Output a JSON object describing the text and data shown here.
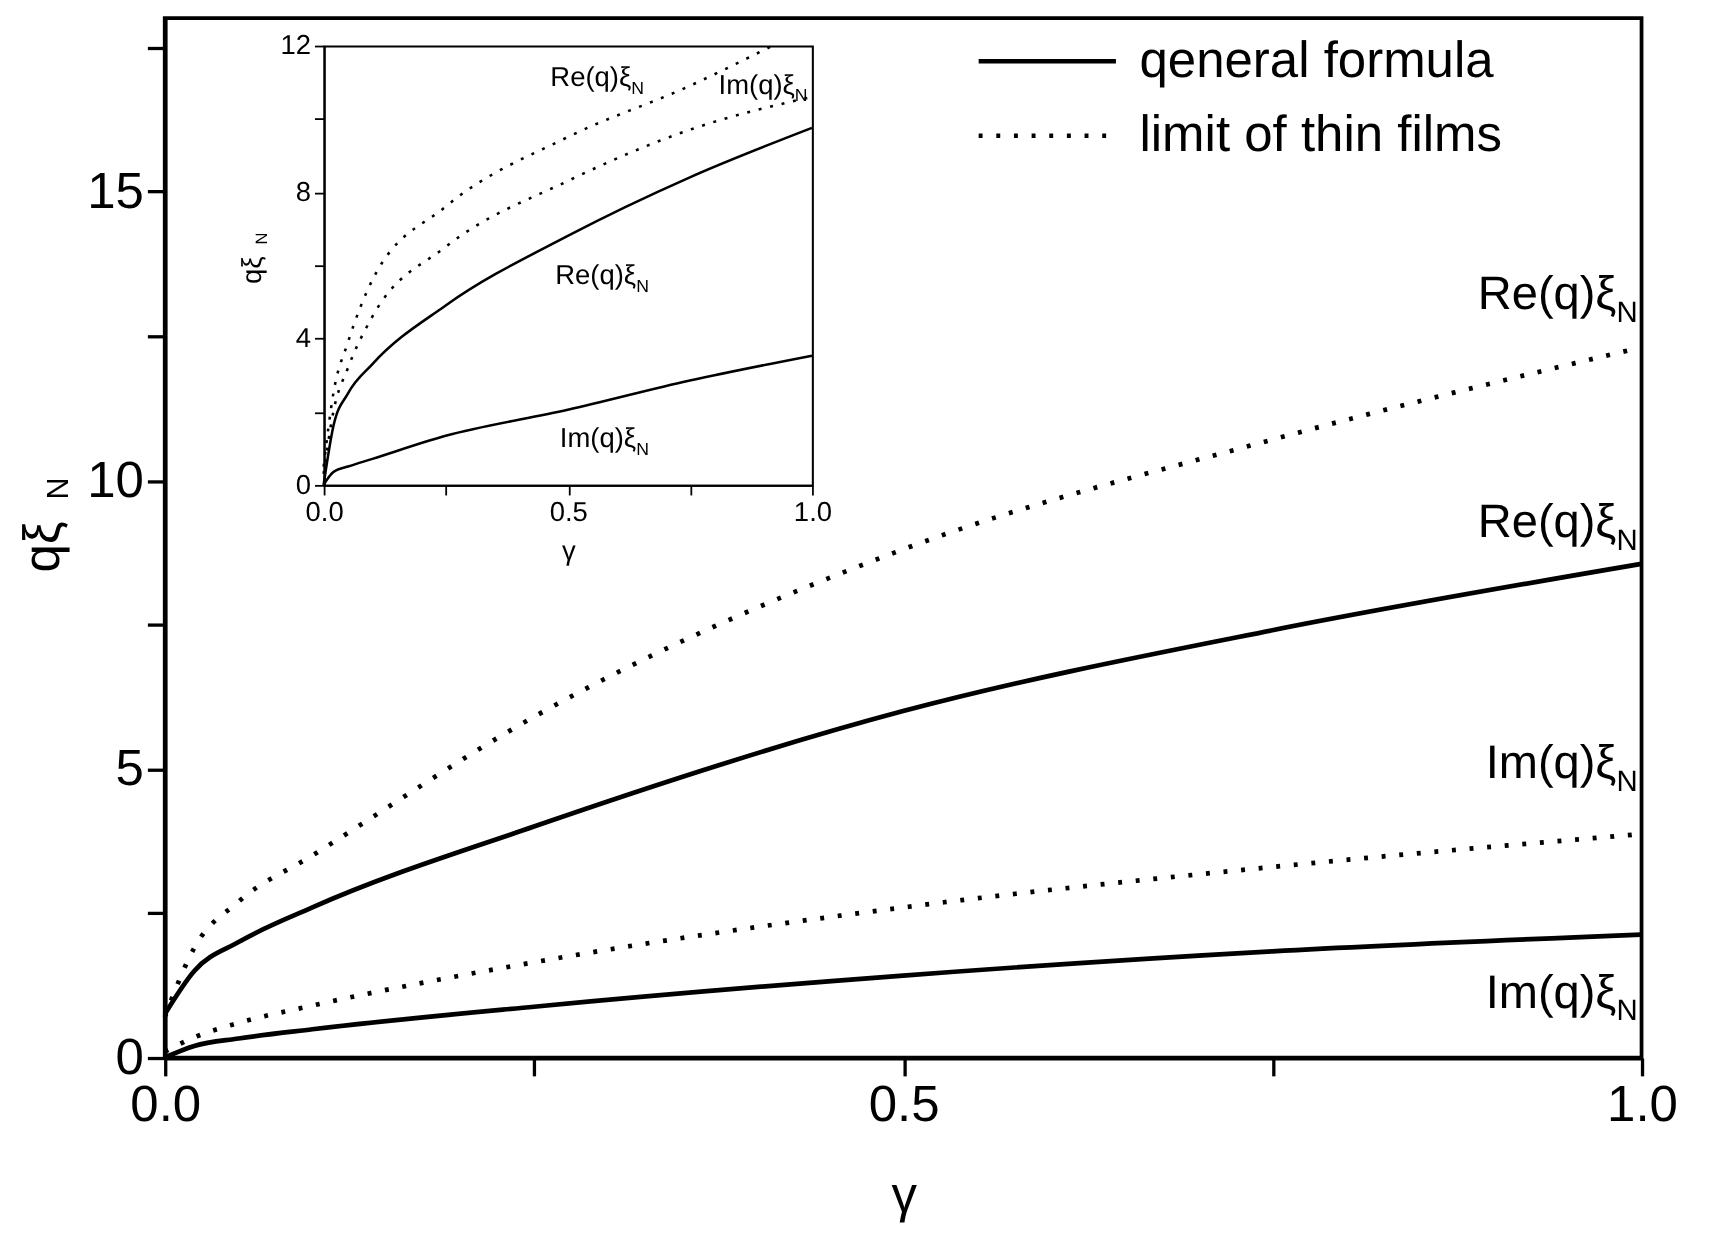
{
  "chart_data": [
    {
      "type": "line",
      "xlabel": "γ",
      "ylabel": "qξ$_{N}$",
      "xlim": [
        0,
        1
      ],
      "ylim": [
        0,
        18
      ],
      "xticks": [
        {
          "value": 0,
          "label": "0.0"
        },
        {
          "value": 0.25,
          "label": null
        },
        0.5,
        {
          "value": 0.75,
          "label": null
        },
        {
          "value": 1,
          "label": "1.0"
        }
      ],
      "yticks": [
        0,
        {
          "value": 2.5,
          "label": null
        },
        5,
        {
          "value": 7.5,
          "label": null
        },
        10,
        {
          "value": 12.5,
          "label": null
        },
        15,
        {
          "value": 17.5,
          "label": null
        }
      ],
      "x": [
        0,
        0.02,
        0.05,
        0.1,
        0.25,
        0.5,
        0.75,
        1
      ],
      "legend": "top right",
      "series": [
        {
          "name": "qeneral formula",
          "color": "#000000",
          "line_style": "solid",
          "values": [
            0.75,
            1.5,
            2.0,
            2.6,
            4.0,
            6.0,
            7.4,
            8.55
          ]
        },
        {
          "name": "limit of thin films",
          "color": "#000000",
          "line_style": "dotted",
          "values": [
            0.7,
            1.9,
            2.7,
            3.5,
            5.9,
            8.8,
            10.7,
            12.3
          ]
        },
        {
          "color": "#000000",
          "line_style": "dotted",
          "values": [
            0.1,
            0.35,
            0.6,
            0.9,
            1.65,
            2.6,
            3.3,
            3.87
          ]
        },
        {
          "color": "#000000",
          "line_style": "solid",
          "values": [
            0,
            0.2,
            0.33,
            0.49,
            0.88,
            1.42,
            1.84,
            2.13
          ]
        }
      ],
      "annotations": [
        "Re(q)ξ$_{N}$",
        "Re(q)ξ$_{N}$",
        "Im(q)ξ$_{N}$",
        "Im(q)ξ$_{N}$"
      ]
    },
    {
      "type": "line",
      "xlabel": "γ",
      "ylabel": "qξ$_{N}$",
      "xlim": [
        0,
        1
      ],
      "ylim": [
        0,
        12
      ],
      "xticks": [
        {
          "value": 0,
          "label": "0.0"
        },
        {
          "value": 0.25,
          "label": null
        },
        0.5,
        {
          "value": 0.75,
          "label": null
        },
        {
          "value": 1,
          "label": "1.0"
        }
      ],
      "yticks": [
        0,
        {
          "value": 2,
          "label": null
        },
        4,
        {
          "value": 6,
          "label": null
        },
        8,
        {
          "value": 10,
          "label": null
        },
        12
      ],
      "x": [
        0,
        0.02,
        0.05,
        0.1,
        0.25,
        0.5,
        0.75,
        1
      ],
      "series": [
        {
          "color": "#000000",
          "line_style": "solid",
          "values": [
            0,
            1.6,
            2.5,
            3.3,
            4.9,
            6.8,
            8.4,
            9.75
          ]
        },
        {
          "color": "#000000",
          "line_style": "solid",
          "values": [
            0,
            0.35,
            0.5,
            0.71,
            1.34,
            2.05,
            2.85,
            3.53
          ]
        },
        {
          "color": "#000000",
          "line_style": "dotted",
          "x": [
            0,
            0.02,
            0.05,
            0.1,
            0.25,
            0.5,
            0.75,
            0.92
          ],
          "values": [
            0.5,
            2.5,
            3.9,
            5.6,
            7.6,
            9.5,
            10.9,
            12.0
          ]
        },
        {
          "color": "#000000",
          "line_style": "dotted",
          "values": [
            0.3,
            2.0,
            3.2,
            4.6,
            6.5,
            8.3,
            9.7,
            10.6
          ]
        }
      ],
      "annotations": [
        "Re(q)ξ$_{N}$",
        "Im(q)ξ$_{N}$",
        "Re(q)ξ$_{N}$",
        "Im(q)ξ$_{N}$"
      ]
    }
  ]
}
